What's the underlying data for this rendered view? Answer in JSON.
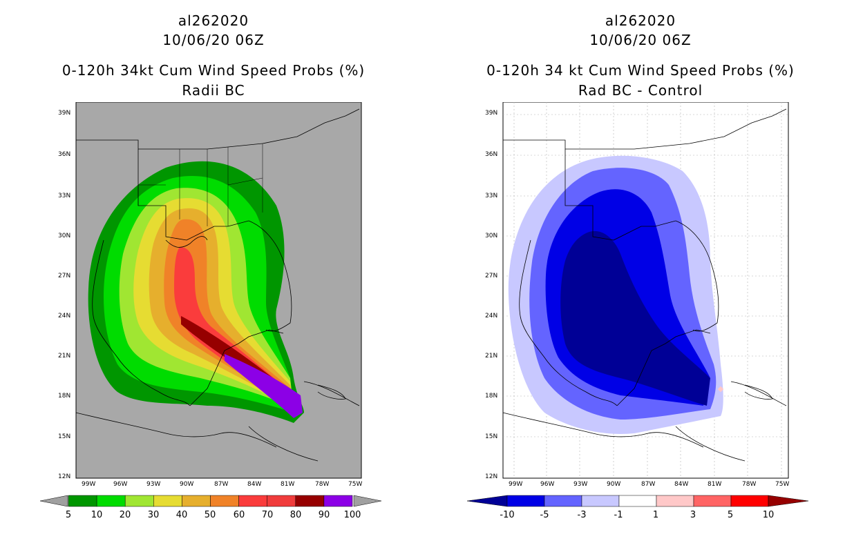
{
  "storm_id": "al262020",
  "datetime": "10/06/20 06Z",
  "lat_labels": [
    "39N",
    "36N",
    "33N",
    "30N",
    "27N",
    "24N",
    "21N",
    "18N",
    "15N",
    "12N"
  ],
  "lon_labels": [
    "99W",
    "96W",
    "93W",
    "90W",
    "87W",
    "84W",
    "81W",
    "78W",
    "75W"
  ],
  "panels": [
    {
      "title_line3": "0-120h 34kt Cum Wind Speed Probs (%)",
      "title_line4": "Radii BC",
      "background": "#a8a8a8",
      "colorbar": {
        "labels": [
          "5",
          "10",
          "20",
          "30",
          "40",
          "50",
          "60",
          "70",
          "80",
          "90",
          "100"
        ],
        "colors": [
          "#009600",
          "#00dc00",
          "#a0e632",
          "#e6dc32",
          "#e6af2d",
          "#f08228",
          "#fa3c3c",
          "#f03c3c",
          "#960000",
          "#8c00e6"
        ],
        "end_colors": [
          "#a0a0a0",
          "#a0a0a0"
        ]
      }
    },
    {
      "title_line3": "0-120h 34 kt Cum Wind Speed Probs (%)",
      "title_line4": "Rad BC - Control",
      "background": "#ffffff",
      "colorbar": {
        "labels": [
          "-10",
          "-5",
          "-3",
          "-1",
          "1",
          "3",
          "5",
          "10"
        ],
        "colors": [
          "#0000e6",
          "#6464ff",
          "#c8c8ff",
          "#ffffff",
          "#ffc8c8",
          "#ff6464",
          "#ff0000"
        ],
        "end_colors": [
          "#000096",
          "#960000"
        ]
      }
    }
  ]
}
